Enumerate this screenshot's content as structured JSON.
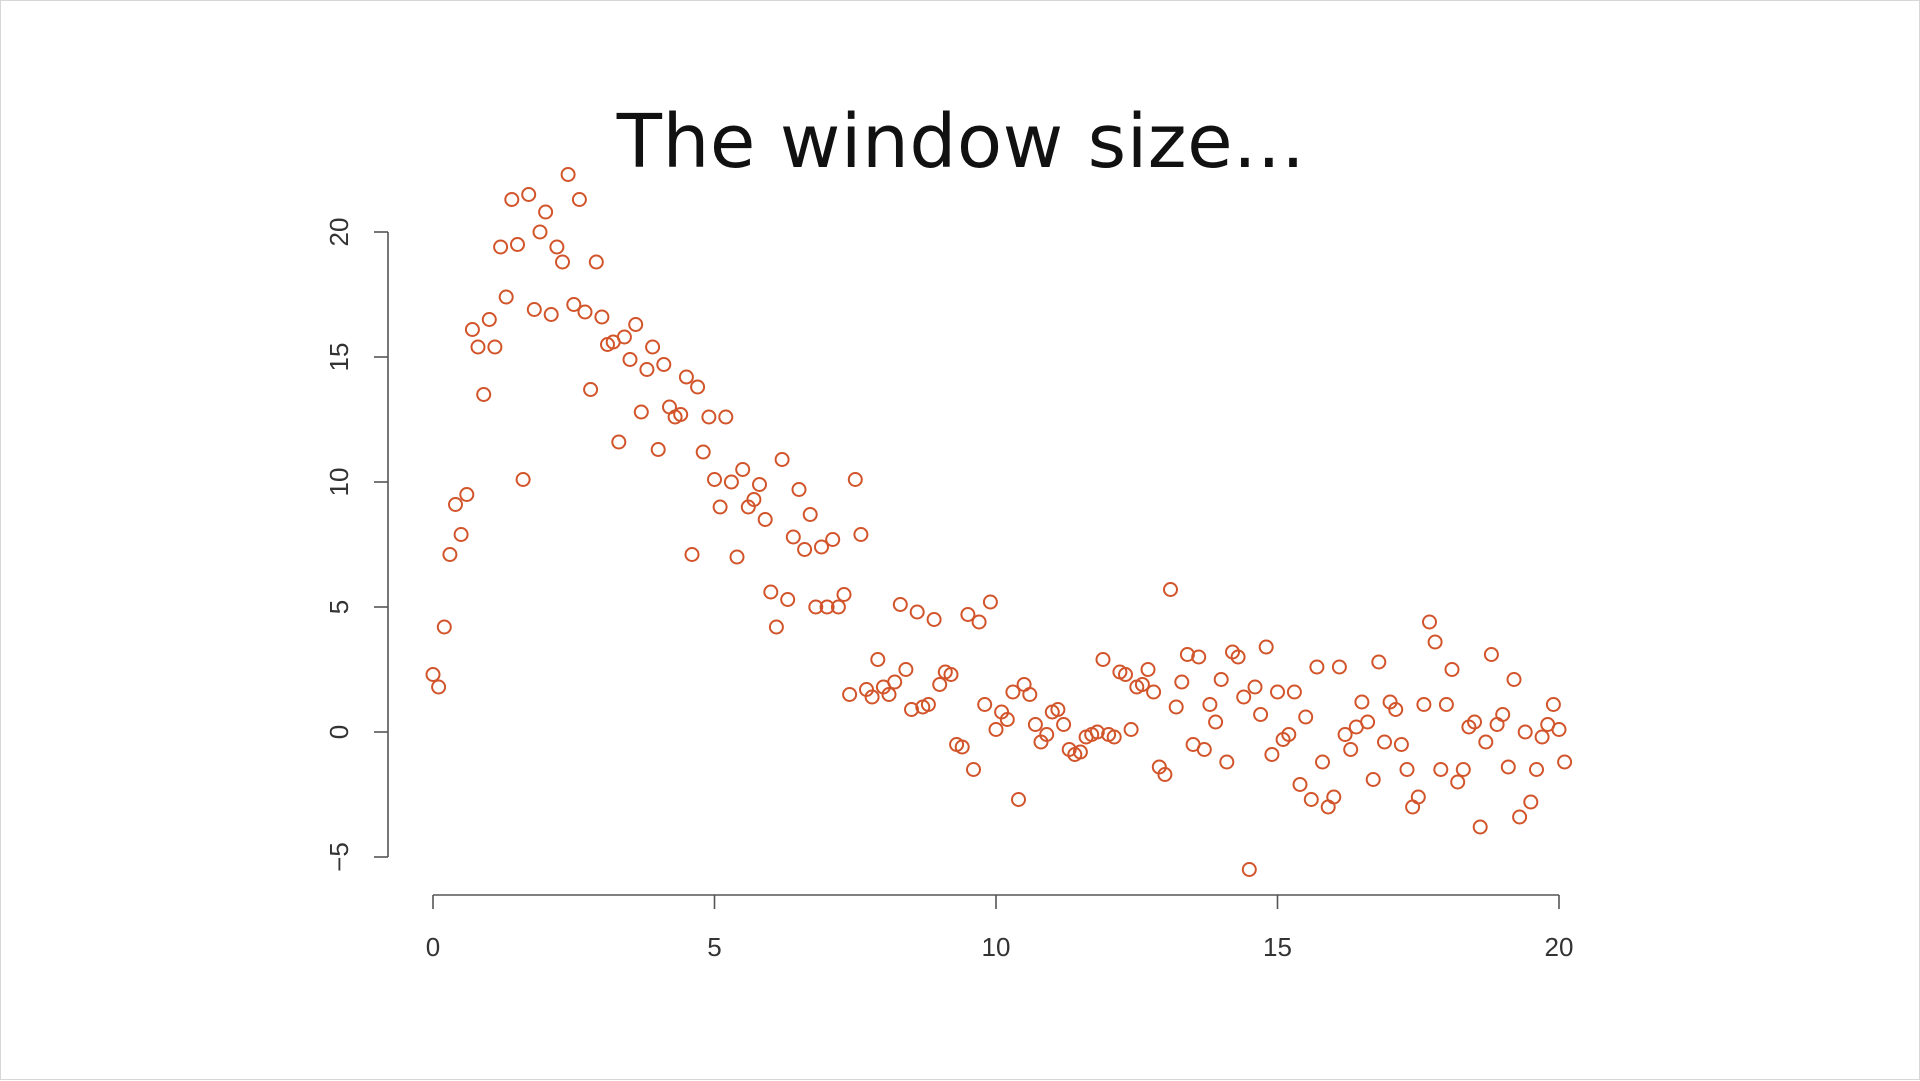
{
  "slide": {
    "title": "The window size..."
  },
  "chart_data": {
    "type": "scatter",
    "title": "The window size...",
    "xlabel": "",
    "ylabel": "",
    "xlim": [
      0,
      20
    ],
    "ylim": [
      -5,
      20
    ],
    "x_ticks": [
      0,
      5,
      10,
      15,
      20
    ],
    "y_ticks": [
      -5,
      0,
      5,
      10,
      15,
      20
    ],
    "grid": false,
    "marker": "open-circle",
    "color": "#d2542a",
    "points": [
      [
        0.0,
        2.3
      ],
      [
        0.1,
        1.8
      ],
      [
        0.2,
        4.2
      ],
      [
        0.3,
        7.1
      ],
      [
        0.4,
        9.1
      ],
      [
        0.5,
        7.9
      ],
      [
        0.6,
        9.5
      ],
      [
        0.7,
        16.1
      ],
      [
        0.8,
        15.4
      ],
      [
        0.9,
        13.5
      ],
      [
        1.0,
        16.5
      ],
      [
        1.1,
        15.4
      ],
      [
        1.2,
        19.4
      ],
      [
        1.3,
        17.4
      ],
      [
        1.4,
        21.3
      ],
      [
        1.5,
        19.5
      ],
      [
        1.6,
        10.1
      ],
      [
        1.7,
        21.5
      ],
      [
        1.8,
        16.9
      ],
      [
        1.9,
        20.0
      ],
      [
        2.0,
        20.8
      ],
      [
        2.1,
        16.7
      ],
      [
        2.2,
        19.4
      ],
      [
        2.3,
        18.8
      ],
      [
        2.4,
        22.3
      ],
      [
        2.5,
        17.1
      ],
      [
        2.6,
        21.3
      ],
      [
        2.7,
        16.8
      ],
      [
        2.8,
        13.7
      ],
      [
        2.9,
        18.8
      ],
      [
        3.0,
        16.6
      ],
      [
        3.1,
        15.5
      ],
      [
        3.2,
        15.6
      ],
      [
        3.3,
        11.6
      ],
      [
        3.4,
        15.8
      ],
      [
        3.5,
        14.9
      ],
      [
        3.6,
        16.3
      ],
      [
        3.7,
        12.8
      ],
      [
        3.8,
        14.5
      ],
      [
        3.9,
        15.4
      ],
      [
        4.0,
        11.3
      ],
      [
        4.1,
        14.7
      ],
      [
        4.2,
        13.0
      ],
      [
        4.3,
        12.6
      ],
      [
        4.4,
        12.7
      ],
      [
        4.5,
        14.2
      ],
      [
        4.6,
        7.1
      ],
      [
        4.7,
        13.8
      ],
      [
        4.8,
        11.2
      ],
      [
        4.9,
        12.6
      ],
      [
        5.0,
        10.1
      ],
      [
        5.1,
        9.0
      ],
      [
        5.2,
        12.6
      ],
      [
        5.3,
        10.0
      ],
      [
        5.4,
        7.0
      ],
      [
        5.5,
        10.5
      ],
      [
        5.6,
        9.0
      ],
      [
        5.7,
        9.3
      ],
      [
        5.8,
        9.9
      ],
      [
        5.9,
        8.5
      ],
      [
        6.0,
        5.6
      ],
      [
        6.1,
        4.2
      ],
      [
        6.2,
        10.9
      ],
      [
        6.3,
        5.3
      ],
      [
        6.4,
        7.8
      ],
      [
        6.5,
        9.7
      ],
      [
        6.6,
        7.3
      ],
      [
        6.7,
        8.7
      ],
      [
        6.8,
        5.0
      ],
      [
        6.9,
        7.4
      ],
      [
        7.0,
        5.0
      ],
      [
        7.1,
        7.7
      ],
      [
        7.2,
        5.0
      ],
      [
        7.3,
        5.5
      ],
      [
        7.4,
        1.5
      ],
      [
        7.5,
        10.1
      ],
      [
        7.6,
        7.9
      ],
      [
        7.7,
        1.7
      ],
      [
        7.8,
        1.4
      ],
      [
        7.9,
        2.9
      ],
      [
        8.0,
        1.8
      ],
      [
        8.1,
        1.5
      ],
      [
        8.2,
        2.0
      ],
      [
        8.3,
        5.1
      ],
      [
        8.4,
        2.5
      ],
      [
        8.5,
        0.9
      ],
      [
        8.6,
        4.8
      ],
      [
        8.7,
        1.0
      ],
      [
        8.8,
        1.1
      ],
      [
        8.9,
        4.5
      ],
      [
        9.0,
        1.9
      ],
      [
        9.1,
        2.4
      ],
      [
        9.2,
        2.3
      ],
      [
        9.3,
        -0.5
      ],
      [
        9.4,
        -0.6
      ],
      [
        9.5,
        4.7
      ],
      [
        9.6,
        -1.5
      ],
      [
        9.7,
        4.4
      ],
      [
        9.8,
        1.1
      ],
      [
        9.9,
        5.2
      ],
      [
        10.0,
        0.1
      ],
      [
        10.1,
        0.8
      ],
      [
        10.2,
        0.5
      ],
      [
        10.3,
        1.6
      ],
      [
        10.4,
        -2.7
      ],
      [
        10.5,
        1.9
      ],
      [
        10.6,
        1.5
      ],
      [
        10.7,
        0.3
      ],
      [
        10.8,
        -0.4
      ],
      [
        10.9,
        -0.1
      ],
      [
        11.0,
        0.8
      ],
      [
        11.1,
        0.9
      ],
      [
        11.2,
        0.3
      ],
      [
        11.3,
        -0.7
      ],
      [
        11.4,
        -0.9
      ],
      [
        11.5,
        -0.8
      ],
      [
        11.6,
        -0.2
      ],
      [
        11.7,
        -0.1
      ],
      [
        11.8,
        0.0
      ],
      [
        11.9,
        2.9
      ],
      [
        12.0,
        -0.1
      ],
      [
        12.1,
        -0.2
      ],
      [
        12.2,
        2.4
      ],
      [
        12.3,
        2.3
      ],
      [
        12.4,
        0.1
      ],
      [
        12.5,
        1.8
      ],
      [
        12.6,
        1.9
      ],
      [
        12.7,
        2.5
      ],
      [
        12.8,
        1.6
      ],
      [
        12.9,
        -1.4
      ],
      [
        13.0,
        -1.7
      ],
      [
        13.1,
        5.7
      ],
      [
        13.2,
        1.0
      ],
      [
        13.3,
        2.0
      ],
      [
        13.4,
        3.1
      ],
      [
        13.5,
        -0.5
      ],
      [
        13.6,
        3.0
      ],
      [
        13.7,
        -0.7
      ],
      [
        13.8,
        1.1
      ],
      [
        13.9,
        0.4
      ],
      [
        14.0,
        2.1
      ],
      [
        14.1,
        -1.2
      ],
      [
        14.2,
        3.2
      ],
      [
        14.3,
        3.0
      ],
      [
        14.4,
        1.4
      ],
      [
        14.5,
        -5.5
      ],
      [
        14.6,
        1.8
      ],
      [
        14.7,
        0.7
      ],
      [
        14.8,
        3.4
      ],
      [
        14.9,
        -0.9
      ],
      [
        15.0,
        1.6
      ],
      [
        15.1,
        -0.3
      ],
      [
        15.2,
        -0.1
      ],
      [
        15.3,
        1.6
      ],
      [
        15.4,
        -2.1
      ],
      [
        15.5,
        0.6
      ],
      [
        15.6,
        -2.7
      ],
      [
        15.7,
        2.6
      ],
      [
        15.8,
        -1.2
      ],
      [
        15.9,
        -3.0
      ],
      [
        16.0,
        -2.6
      ],
      [
        16.1,
        2.6
      ],
      [
        16.2,
        -0.1
      ],
      [
        16.3,
        -0.7
      ],
      [
        16.4,
        0.2
      ],
      [
        16.5,
        1.2
      ],
      [
        16.6,
        0.4
      ],
      [
        16.7,
        -1.9
      ],
      [
        16.8,
        2.8
      ],
      [
        16.9,
        -0.4
      ],
      [
        17.0,
        1.2
      ],
      [
        17.1,
        0.9
      ],
      [
        17.2,
        -0.5
      ],
      [
        17.3,
        -1.5
      ],
      [
        17.4,
        -3.0
      ],
      [
        17.5,
        -2.6
      ],
      [
        17.6,
        1.1
      ],
      [
        17.7,
        4.4
      ],
      [
        17.8,
        3.6
      ],
      [
        17.9,
        -1.5
      ],
      [
        18.0,
        1.1
      ],
      [
        18.1,
        2.5
      ],
      [
        18.2,
        -2.0
      ],
      [
        18.3,
        -1.5
      ],
      [
        18.4,
        0.2
      ],
      [
        18.5,
        0.4
      ],
      [
        18.6,
        -3.8
      ],
      [
        18.7,
        -0.4
      ],
      [
        18.8,
        3.1
      ],
      [
        18.9,
        0.3
      ],
      [
        19.0,
        0.7
      ],
      [
        19.1,
        -1.4
      ],
      [
        19.2,
        2.1
      ],
      [
        19.3,
        -3.4
      ],
      [
        19.4,
        0.0
      ],
      [
        19.5,
        -2.8
      ],
      [
        19.6,
        -1.5
      ],
      [
        19.7,
        -0.2
      ],
      [
        19.8,
        0.3
      ],
      [
        19.9,
        1.1
      ],
      [
        20.0,
        0.1
      ],
      [
        20.1,
        -1.2
      ]
    ]
  }
}
